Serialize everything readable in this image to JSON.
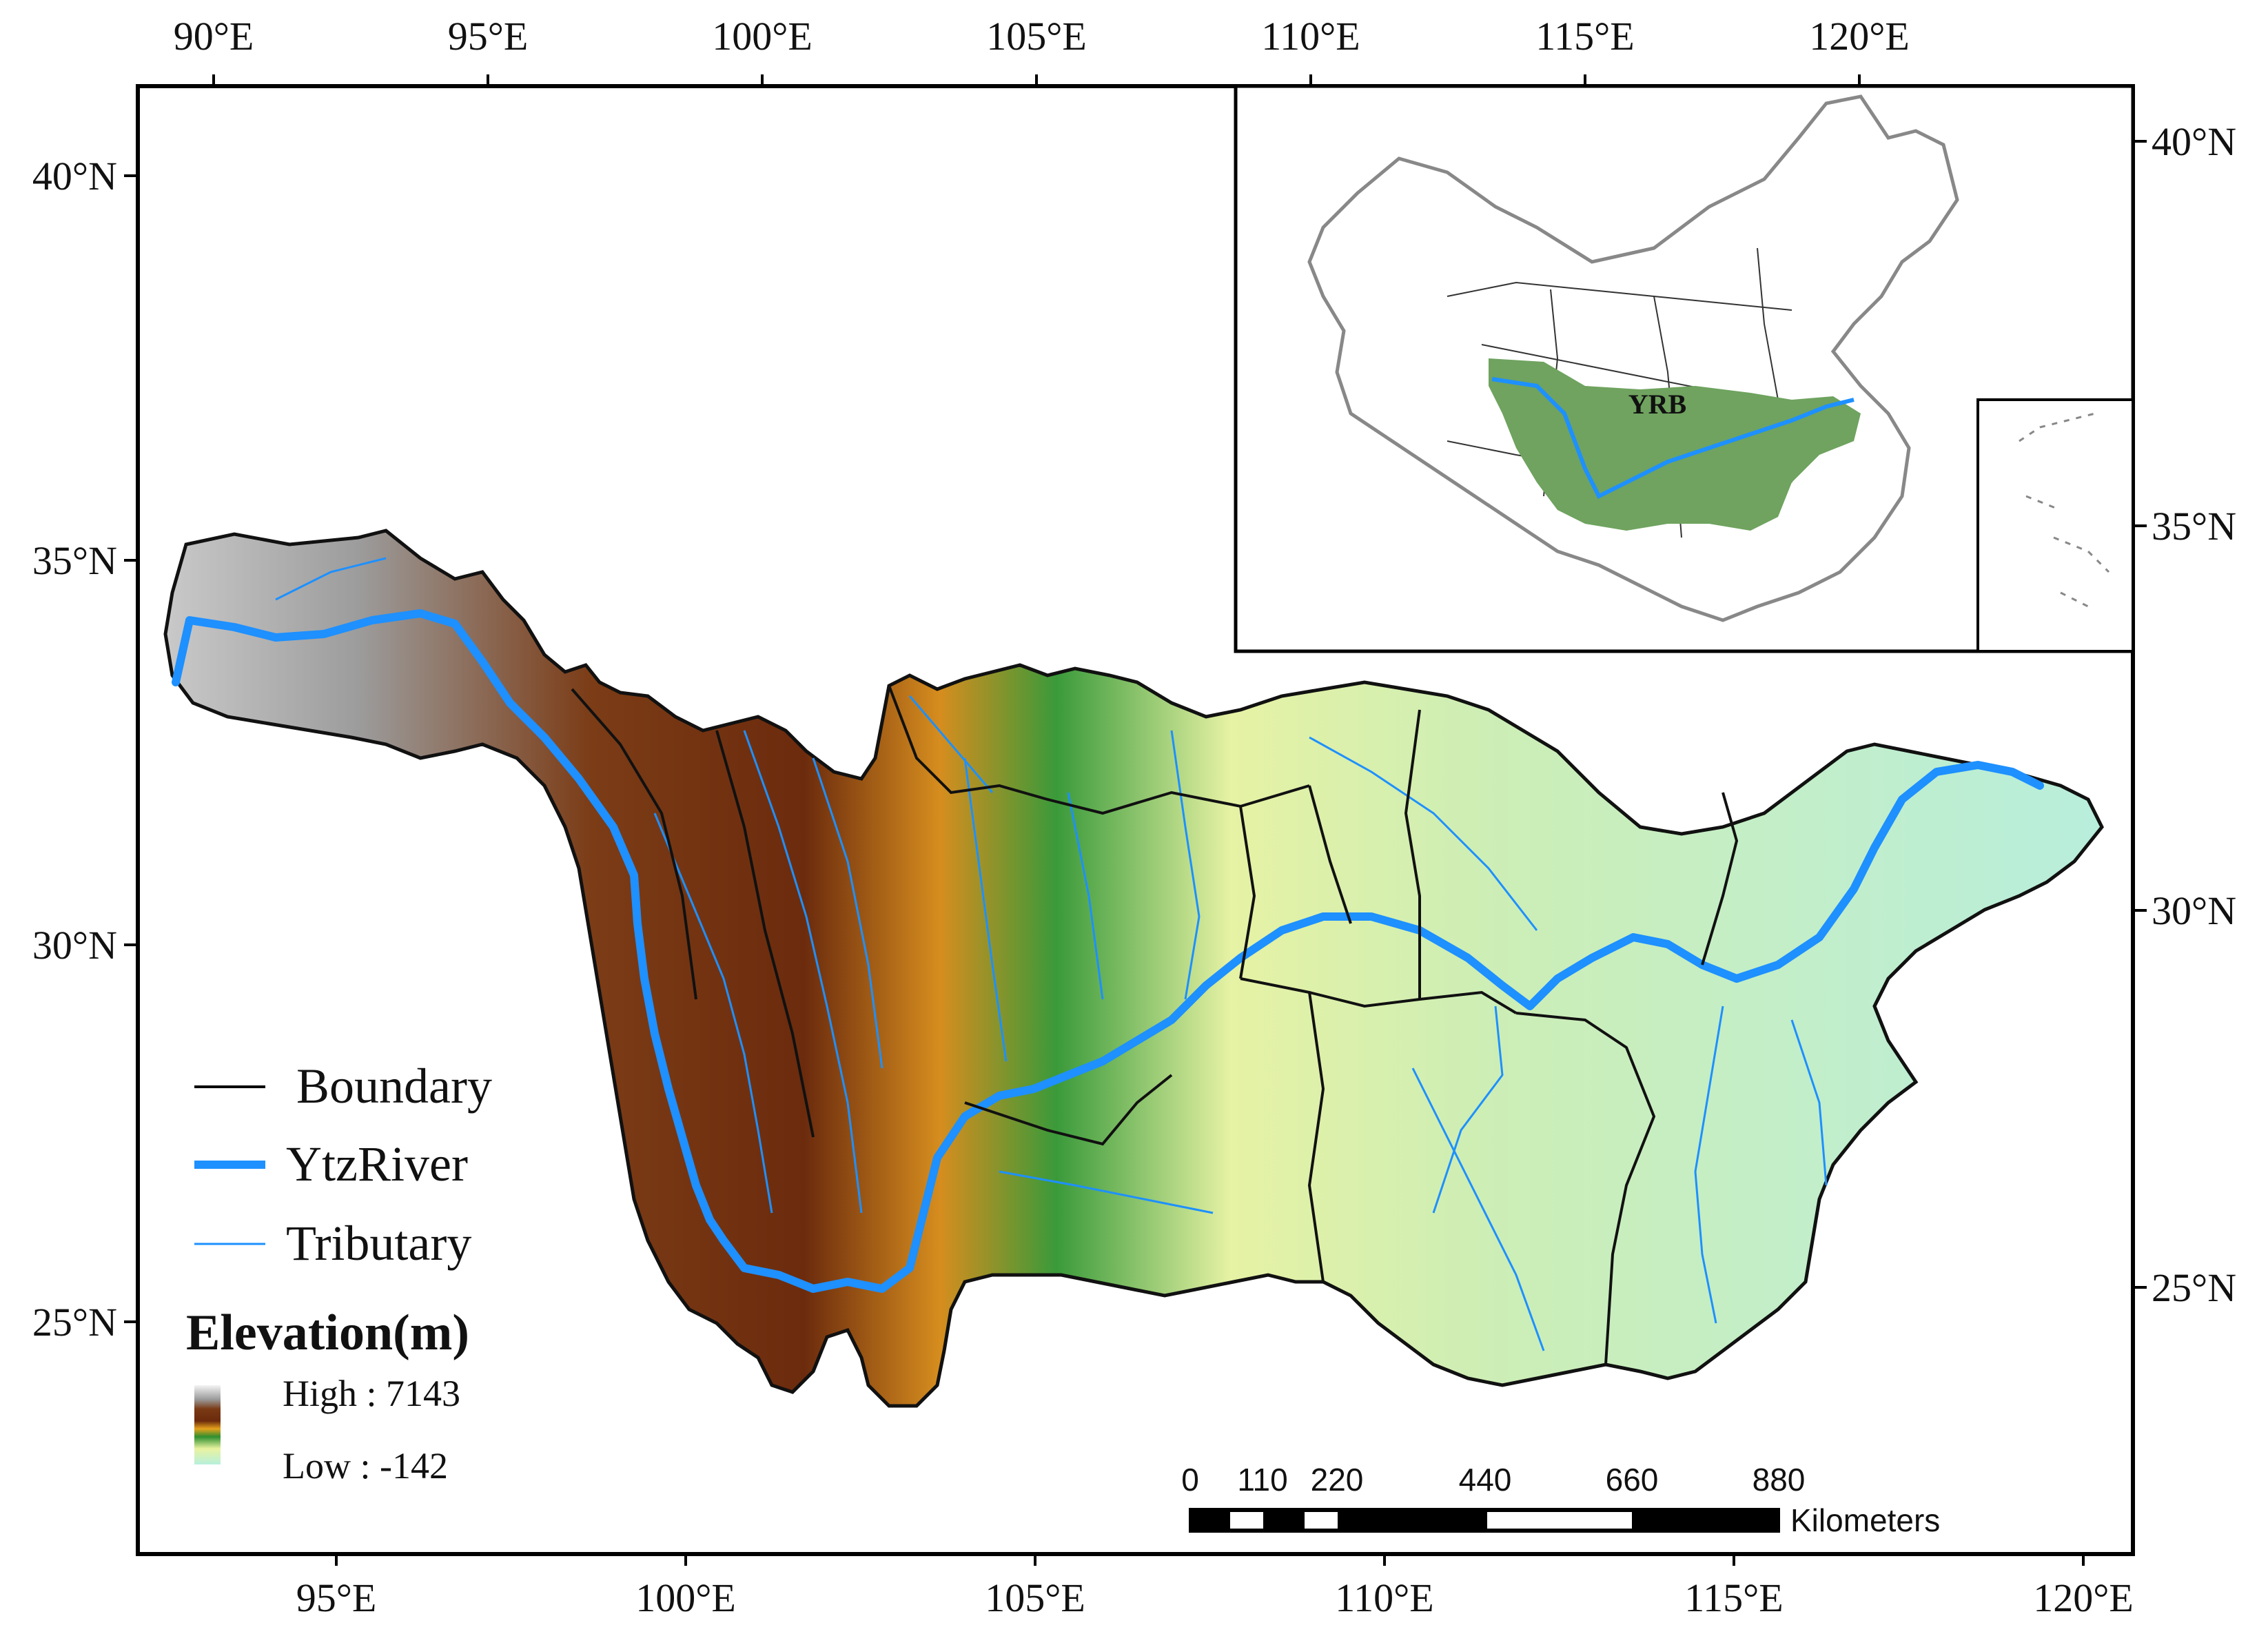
{
  "map": {
    "top_ticks": [
      "90°E",
      "95°E",
      "100°E",
      "105°E",
      "110°E",
      "115°E",
      "120°E"
    ],
    "bottom_ticks": [
      "95°E",
      "100°E",
      "105°E",
      "110°E",
      "115°E",
      "120°E"
    ],
    "left_ticks": [
      "40°N",
      "35°N",
      "30°N",
      "25°N"
    ],
    "right_ticks": [
      "40°N",
      "35°N",
      "30°N",
      "25°N"
    ]
  },
  "legend": {
    "boundary": "Boundary",
    "river": "YtzRiver",
    "tributary": "Tributary",
    "elevation_title": "Elevation(m)",
    "high": "High : 7143",
    "low": "Low : -142"
  },
  "scale_bar": {
    "ticks": [
      "0",
      "110",
      "220",
      "440",
      "660",
      "880"
    ],
    "unit": "Kilometers"
  },
  "inset": {
    "label": "YRB"
  },
  "colors": {
    "river": "#1e90ff",
    "basin_inset": "#6fa35f",
    "frame": "#000000"
  }
}
